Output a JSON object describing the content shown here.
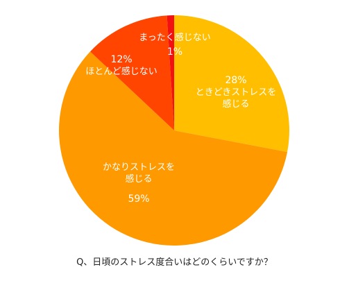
{
  "chart_data": {
    "type": "pie",
    "title": "Q、日頃のストレス度合いはどのくらいですか？",
    "slices": [
      {
        "label": "ときどきストレスを感じる",
        "label_lines": [
          "ときどきストレスを",
          "感じる"
        ],
        "value": 28,
        "pct_text": "28%",
        "color": "#FFBF00"
      },
      {
        "label": "かなりストレスを感じる",
        "label_lines": [
          "かなりストレスを",
          "感じる"
        ],
        "value": 59,
        "pct_text": "59%",
        "color": "#FF9900"
      },
      {
        "label": "ほとんど感じない",
        "label_lines": [
          "ほとんど感じない"
        ],
        "value": 12,
        "pct_text": "12%",
        "color": "#FF4500"
      },
      {
        "label": "まったく感じない",
        "label_lines": [
          "まったく感じない"
        ],
        "value": 1,
        "pct_text": "1%",
        "color": "#F21010"
      }
    ],
    "start": "12 o'clock",
    "direction": "clockwise",
    "legend": "none"
  }
}
